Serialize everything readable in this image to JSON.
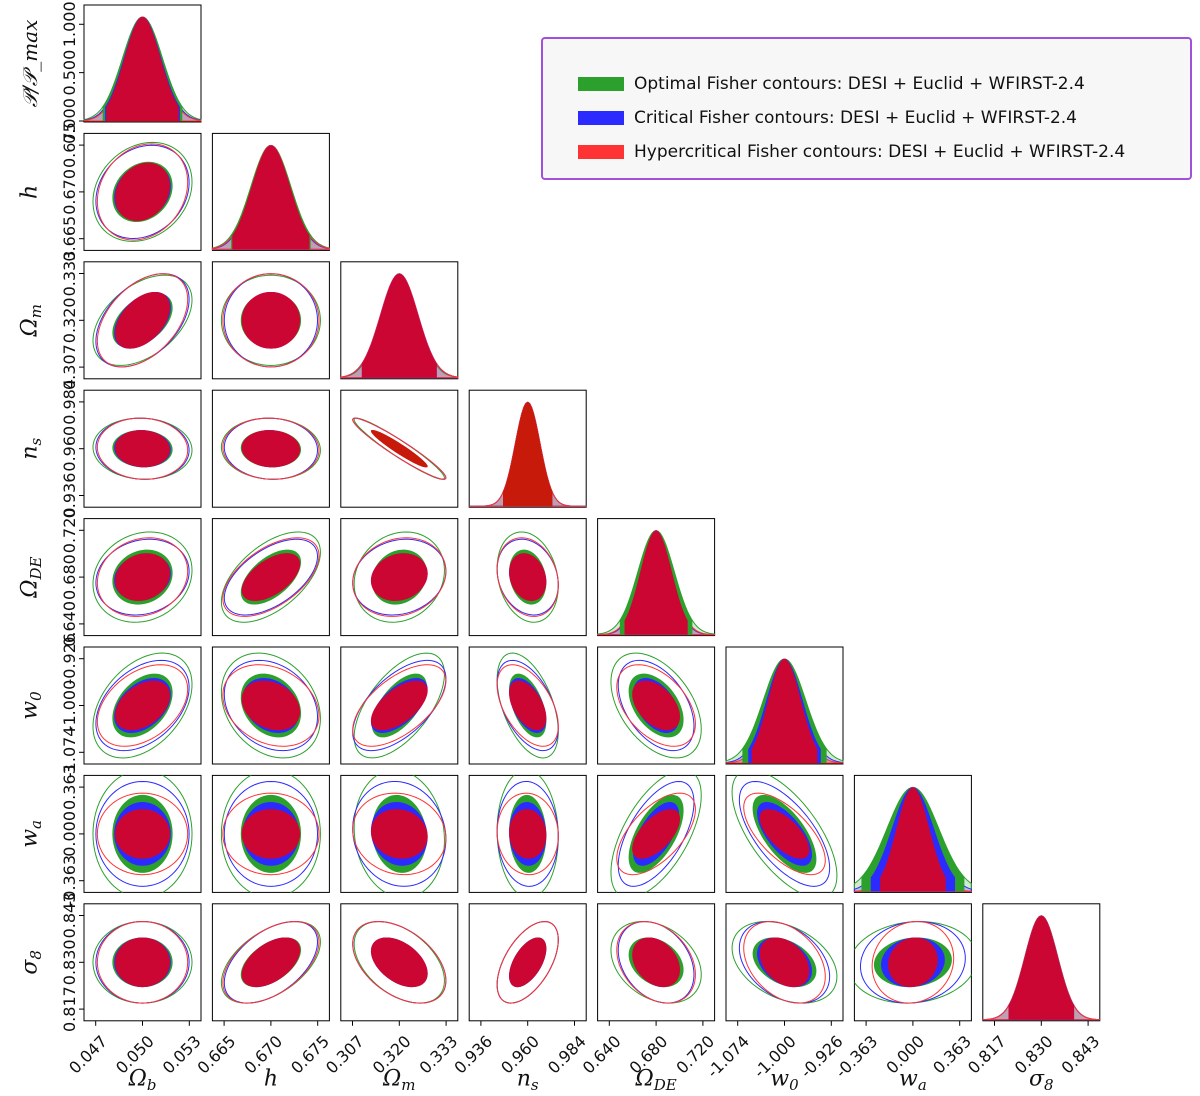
{
  "params": [
    {
      "key": "Ob",
      "label": "Ω_b",
      "sym": "Ω",
      "sub": "b",
      "center": 0.05,
      "ticks": [
        "0.047",
        "0.050",
        "0.053"
      ]
    },
    {
      "key": "h",
      "label": "h",
      "sym": "h",
      "sub": "",
      "center": 0.67,
      "ticks": [
        "0.665",
        "0.670",
        "0.675"
      ]
    },
    {
      "key": "Om",
      "label": "Ω_m",
      "sym": "Ω",
      "sub": "m",
      "center": 0.32,
      "ticks": [
        "0.307",
        "0.320",
        "0.333"
      ]
    },
    {
      "key": "ns",
      "label": "n_s",
      "sym": "n",
      "sub": "s",
      "center": 0.96,
      "ticks": [
        "0.936",
        "0.960",
        "0.984"
      ]
    },
    {
      "key": "ODE",
      "label": "Ω_DE",
      "sym": "Ω",
      "sub": "DE",
      "center": 0.68,
      "ticks": [
        "0.640",
        "0.680",
        "0.720"
      ]
    },
    {
      "key": "w0",
      "label": "w_0",
      "sym": "w",
      "sub": "0",
      "center": -1.0,
      "ticks": [
        "-1.074",
        "-1.000",
        "-0.926"
      ]
    },
    {
      "key": "wa",
      "label": "w_a",
      "sym": "w",
      "sub": "a",
      "center": 0.0,
      "ticks": [
        "-0.363",
        "0.000",
        "0.363"
      ]
    },
    {
      "key": "s8",
      "label": "σ_8",
      "sym": "σ",
      "sub": "8",
      "center": 0.83,
      "ticks": [
        "0.817",
        "0.830",
        "0.843"
      ]
    }
  ],
  "diag_ylabel": "𝒫/𝒫_max",
  "diag_yticks": [
    "0.000",
    "0.500",
    "1.000"
  ],
  "legend": [
    {
      "label": "Optimal Fisher contours: DESI + Euclid + WFIRST-2.4",
      "color": "#2ca02c"
    },
    {
      "label": "Critical Fisher contours: DESI + Euclid + WFIRST-2.4",
      "color": "#2b2bff"
    },
    {
      "label": "Hypercritical Fisher contours: DESI + Euclid + WFIRST-2.4",
      "color": "#ff3333"
    }
  ],
  "colors": {
    "optimal": "#2ca02c",
    "critical": "#2b2bff",
    "hypercritical": "#ff3333",
    "overlap": "#cc0633",
    "overlap_ns": "#c81a0a"
  },
  "chart_data": {
    "type": "triangle-corner-plot",
    "title": "",
    "series": [
      "Optimal",
      "Critical",
      "Hypercritical"
    ],
    "sigma_frac": {
      "Optimal": [
        0.17,
        0.17,
        0.155,
        0.105,
        0.155,
        0.18,
        0.22,
        0.14
      ],
      "Critical": [
        0.16,
        0.16,
        0.16,
        0.105,
        0.13,
        0.155,
        0.18,
        0.14
      ],
      "Hypercritical": [
        0.155,
        0.165,
        0.16,
        0.105,
        0.135,
        0.14,
        0.14,
        0.14
      ]
    },
    "correlation": [
      [
        1.0,
        0.2,
        0.45,
        -0.05,
        0.15,
        0.4,
        0.0,
        0.0
      ],
      [
        0.2,
        1.0,
        0.0,
        -0.05,
        0.55,
        -0.25,
        0.0,
        0.5
      ],
      [
        0.45,
        0.0,
        1.0,
        -0.95,
        0.15,
        0.6,
        -0.1,
        -0.45
      ],
      [
        -0.05,
        -0.05,
        -0.95,
        1.0,
        -0.2,
        -0.5,
        -0.05,
        0.55
      ],
      [
        0.15,
        0.55,
        0.15,
        -0.2,
        1.0,
        -0.45,
        0.6,
        -0.3
      ],
      [
        0.4,
        -0.25,
        0.6,
        -0.5,
        -0.45,
        1.0,
        -0.65,
        -0.35
      ],
      [
        0.0,
        0.0,
        -0.1,
        -0.05,
        0.6,
        -0.65,
        1.0,
        0.1
      ],
      [
        0.0,
        0.5,
        -0.45,
        0.55,
        -0.3,
        -0.35,
        0.1,
        1.0
      ]
    ]
  }
}
